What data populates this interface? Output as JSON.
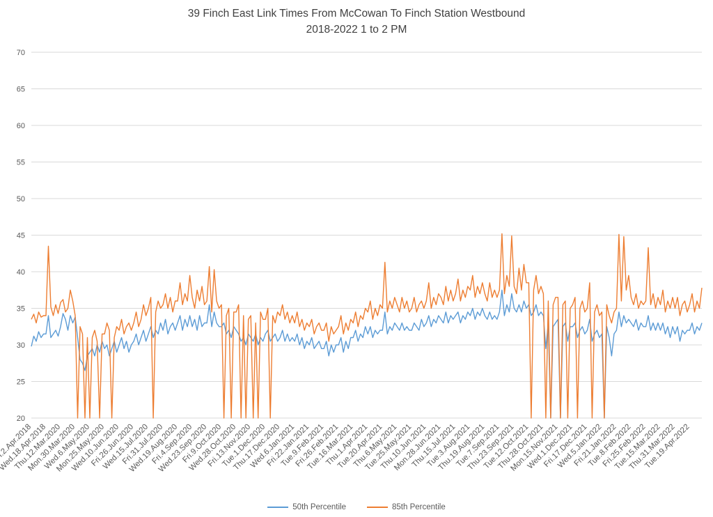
{
  "chart_data": {
    "type": "line",
    "title": "39 Finch East Link Times From McCowan To Finch Station Westbound 2018-2022 1 to 2 PM",
    "title_line1": "39 Finch East Link Times From McCowan To Finch Station Westbound",
    "title_line2": "2018-2022 1 to 2 PM",
    "xlabel": "",
    "ylabel": "",
    "ylim": [
      20,
      70
    ],
    "yticks": [
      20,
      25,
      30,
      35,
      40,
      45,
      50,
      55,
      60,
      65,
      70
    ],
    "grid": true,
    "legend_position": "bottom",
    "grid_color": "#D9D9D9",
    "axis_text_color": "#595959",
    "title_color": "#404040",
    "points_per_category": 6,
    "categories": [
      "Mon.2.Apr.2018",
      "Wed.18.Apr.2018",
      "Thu.12.Mar.2020",
      "Mon.30.Mar.2020",
      "Wed.6.May.2020",
      "Mon.25.May.2020",
      "Wed.10.Jun.2020",
      "Fri.26.Jun.2020",
      "Wed.15.Jul.2020",
      "Fri.31.Jul.2020",
      "Wed.19.Aug.2020",
      "Fri.4.Sep.2020",
      "Wed.23.Sep.2020",
      "Fri.9.Oct.2020",
      "Wed.28.Oct.2020",
      "Fri.13.Nov.2020",
      "Tue.1.Dec.2020",
      "Thu.17.Dec.2020",
      "Wed.6.Jan.2021",
      "Fri.22.Jan.2021",
      "Tue.9.Feb.2021",
      "Fri.26.Feb.2021",
      "Tue.16.Mar.2021",
      "Thu.1.Apr.2021",
      "Tue.20.Apr.2021",
      "Thu.6.May.2021",
      "Tue.25.May.2021",
      "Thu.10.Jun.2021",
      "Mon.28.Jun.2021",
      "Thu.15.Jul.2021",
      "Tue.3.Aug.2021",
      "Thu.19.Aug.2021",
      "Tue.7.Sep.2021",
      "Thu.23.Sep.2021",
      "Tue.12.Oct.2021",
      "Thu.28.Oct.2021",
      "Mon.15.Nov.2021",
      "Wed.1.Dec.2021",
      "Fri.17.Dec.2021",
      "Wed.5.Jan.2022",
      "Fri.21.Jan.2022",
      "Tue.8.Feb.2022",
      "Fri.25.Feb.2022",
      "Tue.15.Mar.2022",
      "Thu.31.Mar.2022",
      "Tue.19.Apr.2022"
    ],
    "series": [
      {
        "name": "50th Percentile",
        "color": "#5B9BD5",
        "values": [
          29.8,
          31.2,
          30.5,
          31.8,
          31,
          31.5,
          31.5,
          34,
          31,
          31.5,
          32,
          31.2,
          32.5,
          34.3,
          33.5,
          32,
          34,
          33,
          33.8,
          31,
          28,
          27.5,
          26.5,
          28.5,
          29,
          29.5,
          28.5,
          30,
          29,
          30.5,
          29.5,
          30,
          28.5,
          29.5,
          30.5,
          29,
          30,
          31,
          29.5,
          30.5,
          29,
          30,
          30.5,
          31.5,
          30,
          31,
          32,
          30.5,
          31.5,
          32.5,
          31,
          32,
          31.5,
          33,
          32,
          33.5,
          31.5,
          32.5,
          33,
          32,
          33,
          34,
          32,
          33.5,
          32.5,
          34,
          32.5,
          33.5,
          32,
          34,
          32.5,
          33,
          33,
          35.5,
          32.5,
          34.5,
          33,
          32.5,
          32.5,
          33,
          31.5,
          32,
          31,
          32.5,
          32,
          31.5,
          30.5,
          31,
          30,
          31.5,
          31,
          30.5,
          31.5,
          30,
          31,
          30.5,
          31.5,
          32,
          30.5,
          31,
          31.5,
          30.5,
          31,
          32,
          30.5,
          31.5,
          30.5,
          31,
          30.5,
          31.5,
          30,
          31,
          29.5,
          30.5,
          30,
          31,
          29.5,
          30,
          30.5,
          29.5,
          29.5,
          30.5,
          28.5,
          30,
          29,
          30,
          30,
          31,
          29,
          30.5,
          29.5,
          31,
          31,
          32,
          30.5,
          31.5,
          31,
          32.5,
          31.5,
          32.5,
          31,
          32,
          31.5,
          32,
          32,
          34.5,
          31.5,
          32.5,
          32,
          33,
          32.5,
          32,
          33,
          32,
          32.5,
          32,
          32,
          33,
          32.5,
          32,
          33.5,
          32.5,
          33,
          34,
          32.5,
          33.5,
          33,
          34,
          33.5,
          33,
          34.5,
          33,
          34,
          33.5,
          34,
          34.5,
          33,
          34,
          33.5,
          34.5,
          34,
          35,
          33.5,
          34.5,
          34,
          35,
          34,
          33.5,
          34.5,
          33.5,
          34,
          33.5,
          34.5,
          37.5,
          34,
          35.5,
          34.5,
          37,
          35,
          34.5,
          35.5,
          34.5,
          36,
          35,
          35.5,
          34,
          34.5,
          35.5,
          34,
          34.5,
          34,
          29.5,
          33,
          20,
          32.5,
          33,
          33.5,
          20,
          32.5,
          33,
          30.5,
          32.5,
          32.5,
          33,
          31,
          32,
          32.5,
          31.5,
          32,
          33.5,
          30.5,
          31.5,
          32,
          31,
          31.5,
          20,
          32.5,
          31,
          28.5,
          31.5,
          32,
          34.5,
          32.5,
          34,
          33,
          33.5,
          33,
          32.5,
          33.5,
          32,
          33,
          32.5,
          32.5,
          34,
          32,
          33,
          32,
          33,
          32,
          33,
          31.5,
          32.5,
          31,
          32.5,
          31.5,
          32.5,
          30.5,
          32,
          31.5,
          32,
          32,
          33,
          31.5,
          32.5,
          32,
          33
        ]
      },
      {
        "name": "85th Percentile",
        "color": "#ED7D31",
        "values": [
          33.5,
          34.2,
          33,
          34.5,
          33.8,
          34,
          34,
          43.5,
          35.2,
          34,
          35.5,
          34.3,
          35.8,
          36.2,
          34.5,
          35,
          37.5,
          36,
          34,
          20,
          32.5,
          31.5,
          20,
          31,
          20,
          31,
          32,
          30.5,
          20,
          31.5,
          31.5,
          33,
          32,
          20,
          31,
          32.5,
          32,
          33.5,
          31.5,
          32.5,
          33,
          32,
          33,
          34.5,
          32.5,
          33.5,
          35.5,
          34,
          35,
          36.5,
          20,
          34.5,
          36,
          35,
          35.5,
          37,
          35,
          36.5,
          34.5,
          36,
          36,
          38.5,
          35.5,
          37,
          36,
          39.5,
          36.5,
          35,
          37.5,
          36,
          38,
          35.5,
          36,
          40.7,
          34.5,
          40.3,
          36,
          35,
          35.5,
          20,
          34,
          35,
          20,
          34.5,
          34.5,
          35.5,
          20,
          34,
          20,
          33.5,
          34,
          20,
          33,
          20,
          34.5,
          33.5,
          33.5,
          35,
          20,
          34,
          33,
          34.5,
          34,
          35.5,
          33.5,
          34.5,
          33,
          34,
          33,
          34.5,
          32.5,
          33.5,
          32,
          33,
          32.5,
          33.5,
          31.5,
          32.5,
          33,
          32,
          32,
          33,
          30.5,
          32.5,
          31.5,
          32,
          32.5,
          34,
          31.5,
          33,
          32,
          33.5,
          33,
          34.5,
          32.5,
          34,
          33.5,
          35,
          34.5,
          36,
          33.5,
          35,
          34,
          35.5,
          35,
          41.3,
          34.5,
          36,
          35,
          36.5,
          35.5,
          34.5,
          36.5,
          35,
          36,
          34.5,
          35,
          36.5,
          34.5,
          35.5,
          36,
          35,
          36,
          38.5,
          35,
          36.5,
          35.5,
          37,
          36.5,
          35.5,
          38,
          36,
          37.5,
          36,
          37,
          39,
          36,
          37.5,
          36.5,
          38,
          37.5,
          39.5,
          36.5,
          38,
          37,
          38.5,
          37,
          36,
          38.5,
          36.5,
          37.5,
          36.5,
          37.5,
          45.2,
          37,
          39.5,
          38,
          44.9,
          38,
          37,
          40.5,
          37.5,
          41,
          38.5,
          38.5,
          20,
          37.5,
          39.5,
          37,
          38,
          37,
          20,
          36,
          20,
          35.5,
          36.5,
          36.5,
          20,
          35.5,
          36,
          20,
          35,
          35.5,
          36.5,
          20,
          35,
          36,
          34.5,
          35,
          38.5,
          20,
          34.5,
          35.5,
          34,
          34.5,
          20,
          35.5,
          34,
          33,
          34.5,
          35,
          45.1,
          36,
          44.8,
          37.5,
          39.5,
          36.5,
          35.5,
          37,
          35,
          36,
          35.5,
          36,
          43.3,
          35.5,
          37,
          35,
          36.5,
          35.5,
          37.5,
          34.5,
          36,
          35,
          36.5,
          35,
          36.5,
          34,
          35.5,
          36,
          34.5,
          35.5,
          37,
          34.5,
          36,
          35,
          37.8
        ]
      }
    ]
  }
}
